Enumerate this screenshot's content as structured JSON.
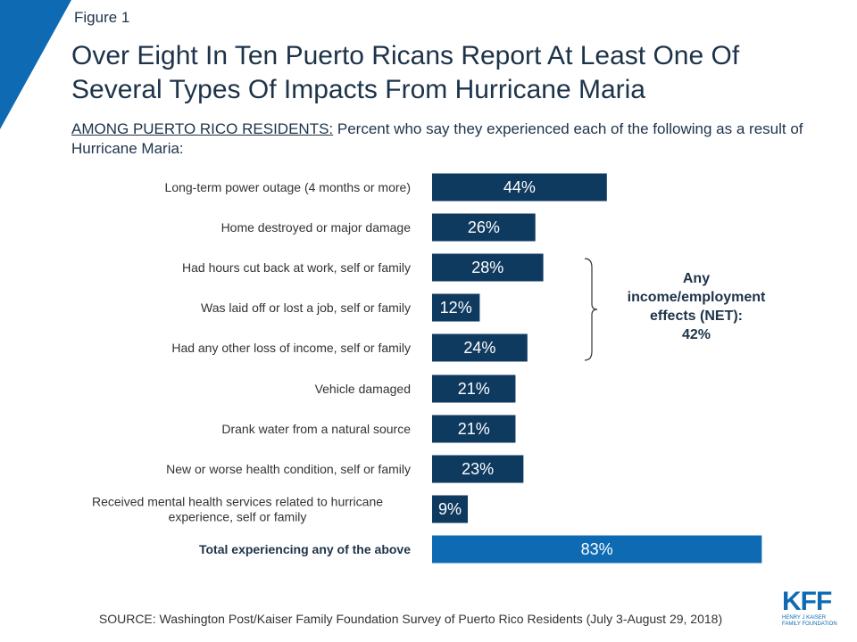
{
  "figure_label": "Figure 1",
  "title": "Over Eight In Ten Puerto Ricans Report At Least One Of Several Types Of Impacts From Hurricane Maria",
  "subtitle": {
    "lead": "AMONG PUERTO RICO RESIDENTS:",
    "text": " Percent who say they experienced each of the following as a result of Hurricane Maria:"
  },
  "net_annotation": {
    "lines": [
      "Any",
      "income/employment",
      "effects (NET):",
      "42%"
    ]
  },
  "source": "SOURCE: Washington Post/Kaiser Family Foundation Survey of Puerto Rico Residents (July 3-August 29, 2018)",
  "logo": {
    "mark": "KFF",
    "name": "HENRY J KAISER\nFAMILY FOUNDATION"
  },
  "colors": {
    "bar": "#0f3a60",
    "total_bar": "#0e6bb3",
    "accent": "#0e6bb3"
  },
  "chart_data": {
    "type": "bar",
    "orientation": "horizontal",
    "categories": [
      [
        "Long-term power outage (4 months or more)"
      ],
      [
        "Home destroyed or major damage"
      ],
      [
        "Had hours cut back at work, self or family"
      ],
      [
        "Was laid off or lost a job, self or family"
      ],
      [
        "Had any other loss of income, self or family"
      ],
      [
        "Vehicle damaged"
      ],
      [
        "Drank water from a natural source"
      ],
      [
        "New or worse health condition, self or family"
      ],
      [
        "Received mental health services related to hurricane",
        "experience, self or family"
      ],
      [
        "Total experiencing any of the above"
      ]
    ],
    "values": [
      44,
      26,
      28,
      12,
      24,
      21,
      21,
      23,
      9,
      83
    ],
    "value_labels": [
      "44%",
      "26%",
      "28%",
      "12%",
      "24%",
      "21%",
      "21%",
      "23%",
      "9%",
      "83%"
    ],
    "total_index": 9,
    "xlim": [
      0,
      100
    ],
    "unit": "%",
    "grid": false,
    "legend": "none",
    "bracket_categories": [
      2,
      3,
      4
    ],
    "title": "Over Eight In Ten Puerto Ricans Report At Least One Of Several Types Of Impacts From Hurricane Maria",
    "xlabel": "",
    "ylabel": ""
  }
}
